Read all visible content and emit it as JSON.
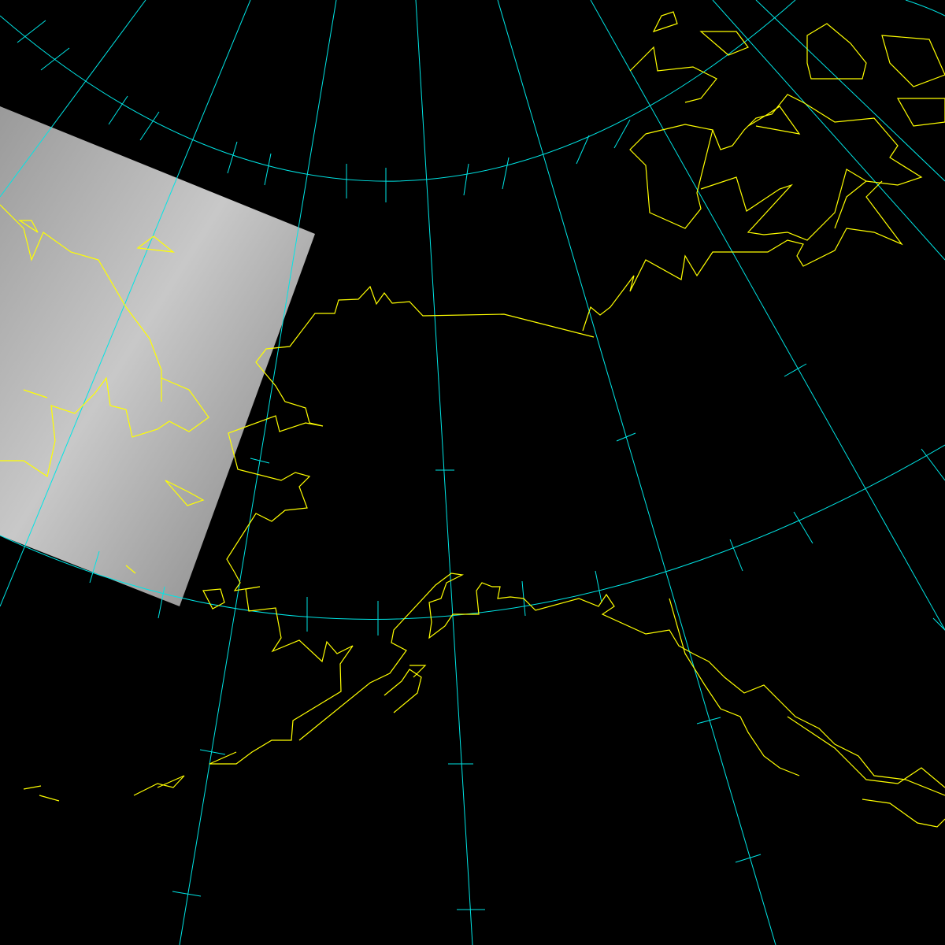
{
  "map": {
    "background_color": "#000000",
    "grid_color": "#00e5e5",
    "coastline_color": "#ffff00",
    "satellite_swath_colors": [
      "#9a9a9a",
      "#c8c8c8",
      "#7e7e7e"
    ]
  }
}
